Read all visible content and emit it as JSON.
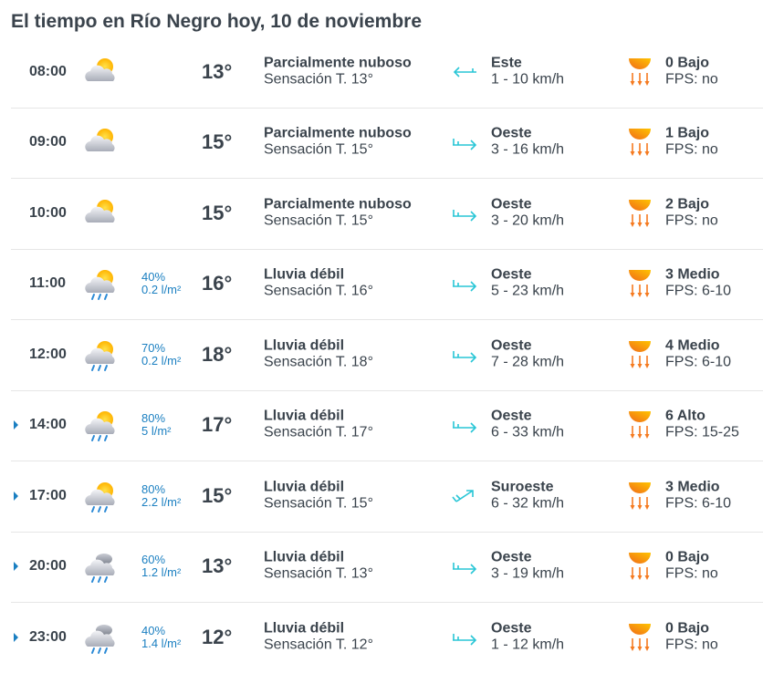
{
  "title": "El tiempo en Río Negro hoy, 10 de noviembre",
  "colors": {
    "text": "#3a434c",
    "precip": "#1a7fc1",
    "wind_arrow": "#29c6d6",
    "sun": "#ffb800"
  },
  "rows": [
    {
      "expandable": false,
      "time": "08:00",
      "icon": "partly-cloudy-icon",
      "prob": "",
      "amount": "",
      "temp": "13°",
      "desc": "Parcialmente nuboso",
      "feels": "Sensación T. 13°",
      "wind_dir": "Este",
      "wind_speed": "1 - 10 km/h",
      "arrow": "west",
      "uv": "0 Bajo",
      "fps": "FPS: no"
    },
    {
      "expandable": false,
      "time": "09:00",
      "icon": "partly-cloudy-icon",
      "prob": "",
      "amount": "",
      "temp": "15°",
      "desc": "Parcialmente nuboso",
      "feels": "Sensación T. 15°",
      "wind_dir": "Oeste",
      "wind_speed": "3 - 16 km/h",
      "arrow": "east",
      "uv": "1 Bajo",
      "fps": "FPS: no"
    },
    {
      "expandable": false,
      "time": "10:00",
      "icon": "partly-cloudy-icon",
      "prob": "",
      "amount": "",
      "temp": "15°",
      "desc": "Parcialmente nuboso",
      "feels": "Sensación T. 15°",
      "wind_dir": "Oeste",
      "wind_speed": "3 - 20 km/h",
      "arrow": "east",
      "uv": "2 Bajo",
      "fps": "FPS: no"
    },
    {
      "expandable": false,
      "time": "11:00",
      "icon": "light-rain-sun-icon",
      "prob": "40%",
      "amount": "0.2 l/m²",
      "temp": "16°",
      "desc": "Lluvia débil",
      "feels": "Sensación T. 16°",
      "wind_dir": "Oeste",
      "wind_speed": "5 - 23 km/h",
      "arrow": "east",
      "uv": "3 Medio",
      "fps": "FPS: 6-10"
    },
    {
      "expandable": false,
      "time": "12:00",
      "icon": "light-rain-sun-icon",
      "prob": "70%",
      "amount": "0.2 l/m²",
      "temp": "18°",
      "desc": "Lluvia débil",
      "feels": "Sensación T. 18°",
      "wind_dir": "Oeste",
      "wind_speed": "7 - 28 km/h",
      "arrow": "east",
      "uv": "4 Medio",
      "fps": "FPS: 6-10"
    },
    {
      "expandable": true,
      "time": "14:00",
      "icon": "light-rain-sun-icon",
      "prob": "80%",
      "amount": "5 l/m²",
      "temp": "17°",
      "desc": "Lluvia débil",
      "feels": "Sensación T. 17°",
      "wind_dir": "Oeste",
      "wind_speed": "6 - 33 km/h",
      "arrow": "east",
      "uv": "6 Alto",
      "fps": "FPS: 15-25"
    },
    {
      "expandable": true,
      "time": "17:00",
      "icon": "light-rain-sun-icon",
      "prob": "80%",
      "amount": "2.2 l/m²",
      "temp": "15°",
      "desc": "Lluvia débil",
      "feels": "Sensación T. 15°",
      "wind_dir": "Suroeste",
      "wind_speed": "6 - 32 km/h",
      "arrow": "northeast",
      "uv": "3 Medio",
      "fps": "FPS: 6-10"
    },
    {
      "expandable": true,
      "time": "20:00",
      "icon": "light-rain-cloudy-icon",
      "prob": "60%",
      "amount": "1.2 l/m²",
      "temp": "13°",
      "desc": "Lluvia débil",
      "feels": "Sensación T. 13°",
      "wind_dir": "Oeste",
      "wind_speed": "3 - 19 km/h",
      "arrow": "east",
      "uv": "0 Bajo",
      "fps": "FPS: no"
    },
    {
      "expandable": true,
      "time": "23:00",
      "icon": "light-rain-cloudy-icon",
      "prob": "40%",
      "amount": "1.4 l/m²",
      "temp": "12°",
      "desc": "Lluvia débil",
      "feels": "Sensación T. 12°",
      "wind_dir": "Oeste",
      "wind_speed": "1 - 12 km/h",
      "arrow": "east",
      "uv": "0 Bajo",
      "fps": "FPS: no"
    }
  ]
}
